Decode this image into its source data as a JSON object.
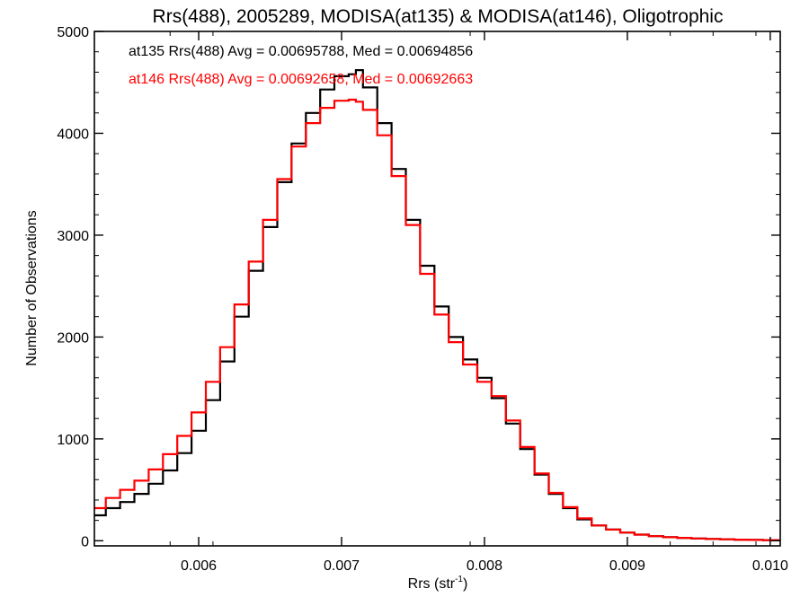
{
  "chart_data": {
    "type": "line",
    "title": "Rrs(488), 2005289, MODISA(at135) & MODISA(at146), Oligotrophic",
    "xlabel": "Rrs (str",
    "xlabel_superscript": "-1",
    "xlabel_suffix": ")",
    "ylabel": "Number of Observations",
    "xlim": [
      0.00527,
      0.01007
    ],
    "ylim": [
      -50,
      5000
    ],
    "x_ticks": [
      0.006,
      0.007,
      0.008,
      0.009,
      0.01
    ],
    "x_tick_labels": [
      "0.006",
      "0.007",
      "0.008",
      "0.009",
      "0.010"
    ],
    "y_ticks": [
      0,
      1000,
      2000,
      3000,
      4000,
      5000
    ],
    "y_tick_labels": [
      "0",
      "1000",
      "2000",
      "3000",
      "4000",
      "5000"
    ],
    "grid": false,
    "annotations": [
      {
        "text": "at135 Rrs(488) Avg = 0.00695788, Med = 0.00694856",
        "color": "#000000"
      },
      {
        "text": "at146 Rrs(488) Avg = 0.00692658, Med = 0.00692663",
        "color": "#ff0000"
      }
    ],
    "series": [
      {
        "color": "#000000",
        "x": [
          0.00527,
          0.00535,
          0.00545,
          0.00555,
          0.00565,
          0.00575,
          0.00585,
          0.00595,
          0.00605,
          0.00615,
          0.00625,
          0.00635,
          0.00645,
          0.00655,
          0.00665,
          0.00675,
          0.00685,
          0.00695,
          0.00705,
          0.0071,
          0.00715,
          0.00725,
          0.00735,
          0.00745,
          0.00755,
          0.00765,
          0.00775,
          0.00785,
          0.00795,
          0.00805,
          0.00815,
          0.00825,
          0.00835,
          0.00845,
          0.00855,
          0.00865,
          0.00875,
          0.00885,
          0.00895,
          0.00905,
          0.00915,
          0.00925,
          0.00935,
          0.00945,
          0.00955,
          0.00965,
          0.00975,
          0.00985,
          0.00995,
          0.01005
        ],
        "y": [
          250,
          320,
          380,
          460,
          560,
          690,
          860,
          1080,
          1380,
          1760,
          2200,
          2650,
          3080,
          3520,
          3900,
          4200,
          4430,
          4560,
          4580,
          4620,
          4450,
          4100,
          3650,
          3150,
          2700,
          2300,
          2000,
          1780,
          1600,
          1400,
          1150,
          900,
          650,
          460,
          320,
          210,
          150,
          110,
          80,
          60,
          45,
          35,
          28,
          22,
          18,
          14,
          11,
          8,
          6,
          5
        ]
      },
      {
        "color": "#ff0000",
        "x": [
          0.00527,
          0.00535,
          0.00545,
          0.00555,
          0.00565,
          0.00575,
          0.00585,
          0.00595,
          0.00605,
          0.00615,
          0.00625,
          0.00635,
          0.00645,
          0.00655,
          0.00665,
          0.00675,
          0.00685,
          0.00695,
          0.00705,
          0.0071,
          0.00715,
          0.00725,
          0.00735,
          0.00745,
          0.00755,
          0.00765,
          0.00775,
          0.00785,
          0.00795,
          0.00805,
          0.00815,
          0.00825,
          0.00835,
          0.00845,
          0.00855,
          0.00865,
          0.00875,
          0.00885,
          0.00895,
          0.00905,
          0.00915,
          0.00925,
          0.00935,
          0.00945,
          0.00955,
          0.00965,
          0.00975,
          0.00985,
          0.00995,
          0.01005
        ],
        "y": [
          320,
          420,
          500,
          590,
          700,
          850,
          1030,
          1260,
          1560,
          1900,
          2320,
          2740,
          3150,
          3550,
          3870,
          4100,
          4250,
          4320,
          4330,
          4310,
          4230,
          3980,
          3580,
          3100,
          2620,
          2220,
          1950,
          1730,
          1560,
          1420,
          1180,
          920,
          660,
          470,
          330,
          220,
          150,
          110,
          80,
          60,
          45,
          35,
          28,
          22,
          18,
          14,
          11,
          8,
          6,
          5
        ]
      }
    ]
  }
}
